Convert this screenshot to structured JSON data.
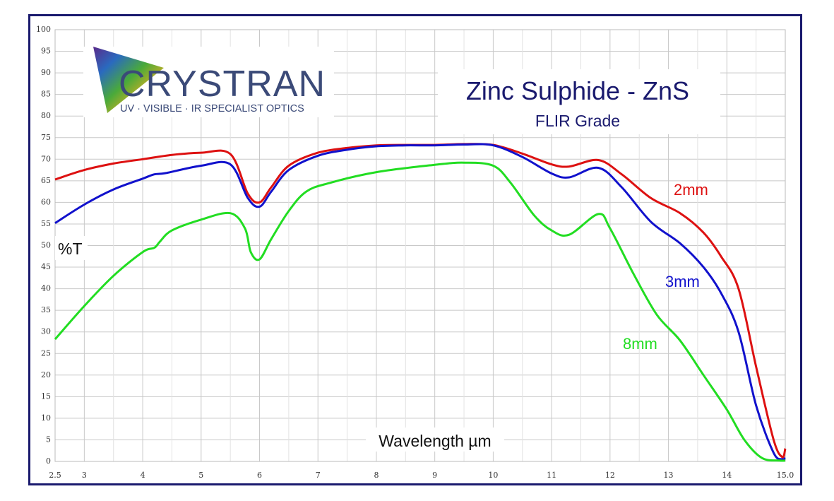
{
  "chart_data": {
    "type": "line",
    "title": "Zinc Sulphide - ZnS",
    "subtitle": "FLIR Grade",
    "xlabel": "Wavelength µm",
    "ylabel": "%T",
    "x_ticks": [
      "2.5",
      "3",
      "4",
      "5",
      "6",
      "7",
      "8",
      "9",
      "10",
      "11",
      "12",
      "13",
      "14",
      "15.0"
    ],
    "y_ticks": [
      "0",
      "5",
      "10",
      "15",
      "20",
      "25",
      "30",
      "35",
      "40",
      "45",
      "50",
      "55",
      "60",
      "65",
      "70",
      "75",
      "80",
      "85",
      "90",
      "95",
      "100"
    ],
    "xlim": [
      2.5,
      15.0
    ],
    "ylim": [
      0,
      100
    ],
    "grid": true,
    "colors": {
      "2mm": "#dd1111",
      "3mm": "#1111cc",
      "8mm": "#22dd22",
      "title": "#1a1a6e",
      "frame": "#1a1a6e"
    },
    "series": [
      {
        "name": "2mm",
        "x": [
          2.5,
          3.0,
          3.5,
          4.0,
          4.5,
          5.0,
          5.5,
          5.8,
          6.0,
          6.2,
          6.5,
          7.0,
          7.5,
          8.0,
          8.5,
          9.0,
          9.5,
          10.0,
          10.5,
          11.0,
          11.3,
          11.8,
          12.2,
          12.7,
          13.2,
          13.6,
          13.9,
          14.2,
          14.5,
          14.8,
          14.95,
          15.0
        ],
        "y": [
          65.3,
          67.5,
          69.0,
          70.0,
          71.0,
          71.5,
          71.2,
          62.0,
          60.0,
          63.5,
          68.5,
          71.5,
          72.6,
          73.2,
          73.3,
          73.3,
          73.5,
          73.3,
          71.3,
          68.8,
          68.3,
          69.8,
          66.5,
          61.0,
          57.5,
          53.0,
          47.5,
          40.0,
          22.0,
          5.0,
          1.0,
          3.0
        ]
      },
      {
        "name": "3mm",
        "x": [
          2.5,
          3.0,
          3.5,
          4.0,
          4.2,
          4.4,
          5.0,
          5.5,
          5.8,
          6.0,
          6.2,
          6.5,
          7.0,
          7.5,
          8.0,
          8.5,
          9.0,
          9.5,
          10.0,
          10.5,
          11.0,
          11.3,
          11.8,
          12.2,
          12.7,
          13.2,
          13.6,
          13.9,
          14.2,
          14.5,
          14.8,
          14.95,
          15.0
        ],
        "y": [
          55.2,
          59.5,
          63.0,
          65.5,
          66.5,
          66.8,
          68.5,
          68.8,
          61.0,
          59.0,
          62.5,
          67.5,
          70.8,
          72.2,
          73.0,
          73.2,
          73.2,
          73.4,
          73.2,
          70.5,
          66.7,
          65.8,
          68.0,
          63.5,
          55.5,
          50.5,
          45.0,
          39.0,
          30.0,
          13.0,
          2.0,
          0.5,
          0.8
        ]
      },
      {
        "name": "8mm",
        "x": [
          2.5,
          3.0,
          3.5,
          4.0,
          4.2,
          4.3,
          4.5,
          5.0,
          5.5,
          5.75,
          5.85,
          6.0,
          6.2,
          6.5,
          6.8,
          7.2,
          8.0,
          9.0,
          9.5,
          10.0,
          10.3,
          10.7,
          11.0,
          11.3,
          11.8,
          12.0,
          12.4,
          12.8,
          13.2,
          13.6,
          14.0,
          14.3,
          14.6,
          14.9,
          15.0
        ],
        "y": [
          28.3,
          36.0,
          43.0,
          48.5,
          49.5,
          51.0,
          53.5,
          56.0,
          57.5,
          54.0,
          48.5,
          46.8,
          51.5,
          58.0,
          62.5,
          64.5,
          67.0,
          68.7,
          69.2,
          68.5,
          64.5,
          57.0,
          53.5,
          52.5,
          57.3,
          54.0,
          43.5,
          34.0,
          28.0,
          20.0,
          12.0,
          5.0,
          0.8,
          0.2,
          0.2
        ]
      }
    ]
  },
  "logo": {
    "name": "CRYSTRAN",
    "tagline": "UV · VISIBLE · IR SPECIALIST OPTICS"
  }
}
